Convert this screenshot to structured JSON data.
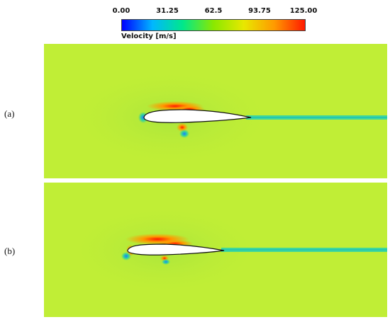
{
  "colorbar": {
    "ticks": [
      "0.00",
      "31.25",
      "62.5",
      "93.75",
      "125.00"
    ],
    "title": "Velocity [m/s]",
    "colors": [
      "#0000ff",
      "#00b7ff",
      "#00e88a",
      "#8ae800",
      "#e8e800",
      "#ff9900",
      "#ff1a00"
    ]
  },
  "panels": [
    {
      "label": "(a)"
    },
    {
      "label": "(b)"
    }
  ],
  "field_colors": {
    "background": "#c0ee36",
    "wake": "#3fd79a",
    "high_speed": "#ff2a00",
    "low_speed": "#1e7dff"
  }
}
